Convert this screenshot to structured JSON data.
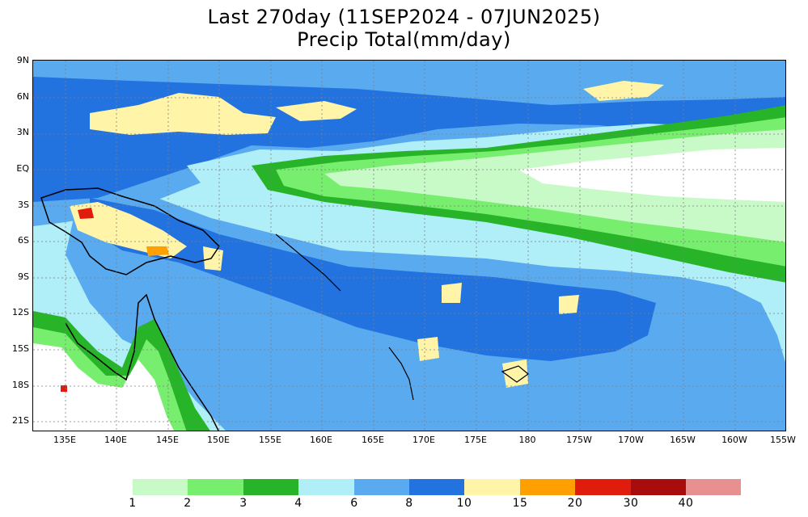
{
  "title": "Last 270day (11SEP2024 - 07JUN2025)",
  "subtitle": "Precip Total(mm/day)",
  "lat_labels": [
    "9N",
    "6N",
    "3N",
    "EQ",
    "3S",
    "6S",
    "9S",
    "12S",
    "15S",
    "18S",
    "21S"
  ],
  "lon_labels": [
    "135E",
    "140E",
    "145E",
    "150E",
    "155E",
    "160E",
    "165E",
    "170E",
    "175E",
    "180",
    "175W",
    "170W",
    "165W",
    "160W",
    "155W"
  ],
  "colorbar": {
    "colors": [
      "#c8fac8",
      "#78ee6e",
      "#28b428",
      "#b0eef8",
      "#5aaaf0",
      "#2272e0",
      "#fff4a8",
      "#ffa000",
      "#e01c0c",
      "#a80c0c",
      "#e89090"
    ],
    "labels": [
      "1",
      "2",
      "3",
      "4",
      "6",
      "8",
      "10",
      "15",
      "20",
      "30",
      "40"
    ]
  }
}
